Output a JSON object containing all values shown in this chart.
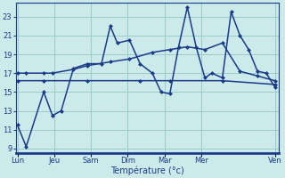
{
  "background_color": "#cceaea",
  "grid_color": "#99cccc",
  "line_color": "#1a3a8a",
  "xlabel": "Température (°c)",
  "ylim": [
    8.5,
    24.5
  ],
  "yticks": [
    9,
    11,
    13,
    15,
    17,
    19,
    21,
    23
  ],
  "day_labels": [
    "Lun",
    "Jeu",
    "Sam",
    "Dim",
    "Mar",
    "Mer",
    "Ven"
  ],
  "zigzag_x": [
    0,
    0.25,
    0.75,
    1.0,
    1.25,
    1.6,
    2.0,
    2.4,
    2.65,
    2.85,
    3.2,
    3.5,
    3.85,
    4.1,
    4.35,
    4.6,
    4.85,
    5.1,
    5.35,
    5.55,
    5.85,
    6.1,
    6.35,
    6.6,
    6.85,
    7.1,
    7.35
  ],
  "zigzag_y": [
    11.5,
    9.2,
    15.0,
    12.5,
    13.0,
    17.5,
    18.0,
    18.0,
    22.0,
    20.2,
    20.5,
    18.0,
    17.0,
    15.0,
    14.8,
    19.8,
    24.0,
    19.8,
    16.5,
    17.0,
    16.5,
    23.5,
    21.0,
    19.5,
    17.2,
    17.0,
    15.5
  ],
  "trend_x": [
    0,
    0.25,
    0.75,
    1.0,
    1.6,
    2.0,
    2.65,
    3.2,
    3.85,
    4.35,
    4.85,
    5.35,
    5.85,
    6.35,
    6.85,
    7.35
  ],
  "trend_y": [
    17.0,
    17.0,
    17.0,
    17.0,
    17.4,
    17.8,
    18.2,
    18.5,
    19.2,
    19.5,
    19.8,
    19.5,
    20.2,
    17.2,
    16.7,
    16.2
  ],
  "flat_x": [
    0,
    0.75,
    2.0,
    3.5,
    4.35,
    5.85,
    7.35
  ],
  "flat_y": [
    16.2,
    16.2,
    16.2,
    16.2,
    16.2,
    16.2,
    15.8
  ],
  "xlim": [
    -0.05,
    7.45
  ],
  "day_x": [
    0,
    1.05,
    2.1,
    3.15,
    4.2,
    5.25,
    7.35
  ]
}
